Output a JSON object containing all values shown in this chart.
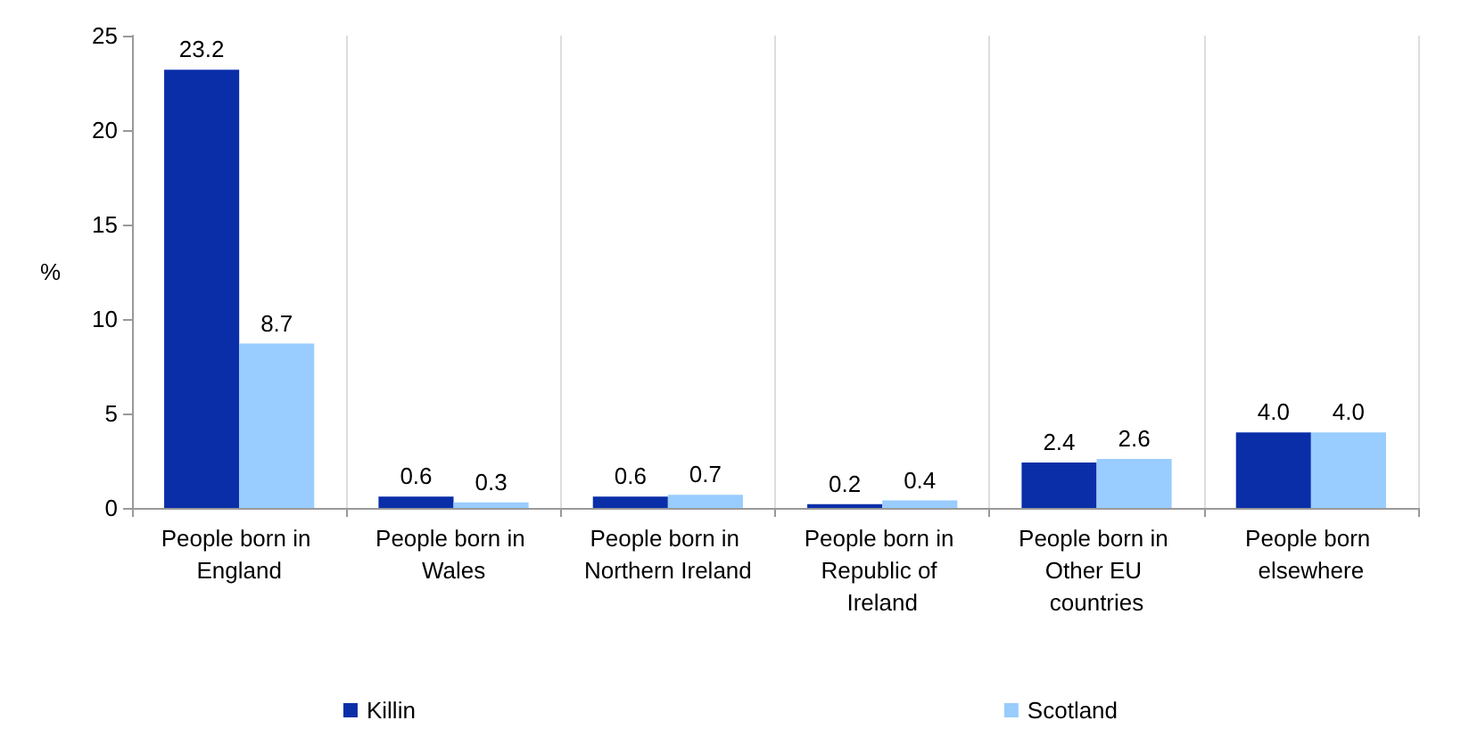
{
  "chart_data": {
    "type": "bar",
    "ylabel": "%",
    "categories": [
      "People born in England",
      "People born in Wales",
      "People born in Northern Ireland",
      "People born in Republic of Ireland",
      "People born in Other EU countries",
      "People born elsewhere"
    ],
    "series": [
      {
        "name": "Killin",
        "color": "#0a2ea8",
        "values": [
          23.2,
          0.6,
          0.6,
          0.2,
          2.4,
          4.0
        ],
        "value_labels": [
          "23.2",
          "0.6",
          "0.6",
          "0.2",
          "2.4",
          "4.0"
        ]
      },
      {
        "name": "Scotland",
        "color": "#99ccff",
        "values": [
          8.7,
          0.3,
          0.7,
          0.4,
          2.6,
          4.0
        ],
        "value_labels": [
          "8.7",
          "0.3",
          "0.7",
          "0.4",
          "2.6",
          "4.0"
        ]
      }
    ],
    "ylim": [
      0,
      25
    ],
    "yticks": [
      0,
      5,
      10,
      15,
      20,
      25
    ],
    "grid": "x",
    "legend": "bottom"
  }
}
